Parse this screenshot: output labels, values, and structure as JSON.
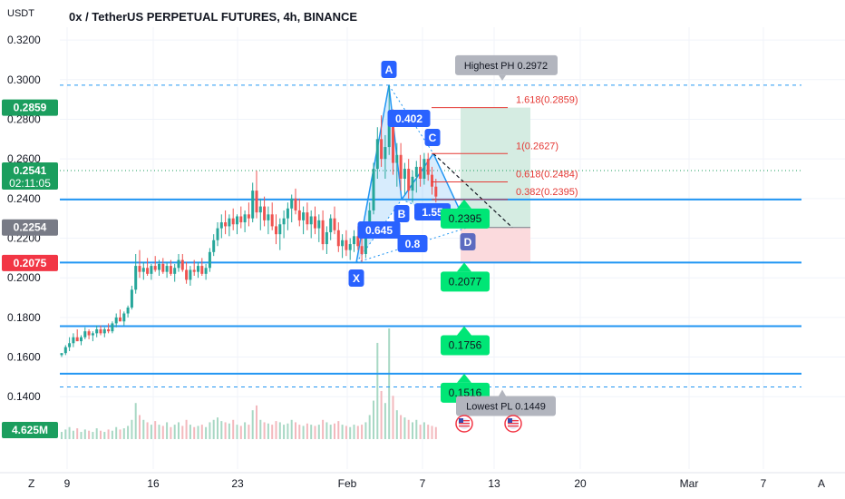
{
  "header": {
    "title": "0x / TetherUS PERPETUAL FUTURES, 4h, BINANCE",
    "unit": "USDT"
  },
  "bottom_bar": {
    "left_button": "Z",
    "right_button": "A"
  },
  "chart_data": {
    "type": "candlestick",
    "y_ticks": [
      "0.3200",
      "0.3000",
      "0.2800",
      "0.2600",
      "0.2400",
      "0.2200",
      "0.2000",
      "0.1800",
      "0.1600",
      "0.1400"
    ],
    "ylim": [
      0.13,
      0.327
    ],
    "x_ticks": [
      "9",
      "16",
      "23",
      "Feb",
      "7",
      "13",
      "20",
      "Mar",
      "7"
    ],
    "price_badges": [
      {
        "text": "0.2859",
        "value": 0.2859,
        "color": "#1b9e5e"
      },
      {
        "text": "0.2541",
        "value": 0.2541,
        "color": "#1b9e5e",
        "sub": "02:11:05"
      },
      {
        "text": "0.2254",
        "value": 0.2254,
        "color": "#787b86"
      },
      {
        "text": "0.2075",
        "value": 0.2075,
        "color": "#f23645"
      }
    ],
    "volume_badge": "4.625M",
    "horizontal_levels": [
      {
        "value": 0.2395,
        "style": "solid"
      },
      {
        "value": 0.2077,
        "style": "solid"
      },
      {
        "value": 0.1756,
        "style": "solid"
      },
      {
        "value": 0.1516,
        "style": "solid"
      },
      {
        "value": 0.2972,
        "style": "dashed"
      },
      {
        "value": 0.1449,
        "style": "dashed"
      }
    ],
    "current_price": 0.2541,
    "pattern": {
      "name": "harmonic",
      "points": [
        {
          "label": "X",
          "value": 0.2077
        },
        {
          "label": "A",
          "value": 0.2972
        },
        {
          "label": "B",
          "value": 0.2395
        },
        {
          "label": "C",
          "value": 0.2627
        },
        {
          "label": "D",
          "value": 0.2254
        }
      ],
      "ratios": [
        "0.402",
        "0.645",
        "0.8",
        "1.55"
      ]
    },
    "fib_levels": [
      {
        "text": "1.618(0.2859)",
        "value": 0.2859
      },
      {
        "text": "1(0.2627)",
        "value": 0.2627
      },
      {
        "text": "0.618(0.2484)",
        "value": 0.2484
      },
      {
        "text": "0.382(0.2395)",
        "value": 0.2395
      }
    ],
    "targets": [
      {
        "text": "0.2395",
        "value": 0.2395
      },
      {
        "text": "0.2077",
        "value": 0.2077
      },
      {
        "text": "0.1756",
        "value": 0.1756
      },
      {
        "text": "0.1516",
        "value": 0.1516
      }
    ],
    "annotations": [
      {
        "text": "Highest PH 0.2972",
        "value": 0.2972
      },
      {
        "text": "Lowest PL 0.1449",
        "value": 0.1449
      }
    ],
    "position": {
      "entry": 0.2254,
      "target": 0.2859,
      "stop": 0.2075
    },
    "candles": [
      [
        0.161,
        0.162,
        0.16,
        0.162
      ],
      [
        0.162,
        0.166,
        0.161,
        0.165
      ],
      [
        0.165,
        0.17,
        0.163,
        0.167
      ],
      [
        0.167,
        0.172,
        0.165,
        0.17
      ],
      [
        0.17,
        0.174,
        0.168,
        0.168
      ],
      [
        0.168,
        0.171,
        0.166,
        0.17
      ],
      [
        0.17,
        0.175,
        0.169,
        0.173
      ],
      [
        0.173,
        0.174,
        0.169,
        0.171
      ],
      [
        0.171,
        0.173,
        0.168,
        0.172
      ],
      [
        0.172,
        0.176,
        0.17,
        0.174
      ],
      [
        0.174,
        0.176,
        0.171,
        0.172
      ],
      [
        0.172,
        0.175,
        0.17,
        0.174
      ],
      [
        0.174,
        0.177,
        0.172,
        0.173
      ],
      [
        0.173,
        0.178,
        0.172,
        0.177
      ],
      [
        0.177,
        0.182,
        0.175,
        0.18
      ],
      [
        0.18,
        0.184,
        0.178,
        0.178
      ],
      [
        0.178,
        0.183,
        0.176,
        0.182
      ],
      [
        0.182,
        0.186,
        0.18,
        0.185
      ],
      [
        0.185,
        0.196,
        0.184,
        0.194
      ],
      [
        0.194,
        0.212,
        0.192,
        0.206
      ],
      [
        0.206,
        0.214,
        0.2,
        0.203
      ],
      [
        0.203,
        0.208,
        0.199,
        0.205
      ],
      [
        0.205,
        0.21,
        0.201,
        0.202
      ],
      [
        0.202,
        0.207,
        0.199,
        0.206
      ],
      [
        0.206,
        0.211,
        0.203,
        0.204
      ],
      [
        0.204,
        0.209,
        0.201,
        0.207
      ],
      [
        0.207,
        0.21,
        0.202,
        0.203
      ],
      [
        0.203,
        0.208,
        0.2,
        0.206
      ],
      [
        0.206,
        0.209,
        0.201,
        0.202
      ],
      [
        0.202,
        0.207,
        0.198,
        0.205
      ],
      [
        0.205,
        0.212,
        0.203,
        0.209
      ],
      [
        0.209,
        0.212,
        0.203,
        0.204
      ],
      [
        0.204,
        0.208,
        0.197,
        0.199
      ],
      [
        0.199,
        0.206,
        0.196,
        0.204
      ],
      [
        0.204,
        0.209,
        0.201,
        0.203
      ],
      [
        0.203,
        0.208,
        0.2,
        0.206
      ],
      [
        0.206,
        0.21,
        0.201,
        0.202
      ],
      [
        0.202,
        0.207,
        0.199,
        0.205
      ],
      [
        0.205,
        0.215,
        0.203,
        0.213
      ],
      [
        0.213,
        0.222,
        0.211,
        0.219
      ],
      [
        0.219,
        0.228,
        0.216,
        0.225
      ],
      [
        0.225,
        0.232,
        0.22,
        0.228
      ],
      [
        0.228,
        0.234,
        0.222,
        0.226
      ],
      [
        0.226,
        0.232,
        0.221,
        0.23
      ],
      [
        0.23,
        0.235,
        0.224,
        0.227
      ],
      [
        0.227,
        0.232,
        0.222,
        0.231
      ],
      [
        0.231,
        0.236,
        0.225,
        0.228
      ],
      [
        0.228,
        0.234,
        0.223,
        0.232
      ],
      [
        0.232,
        0.238,
        0.226,
        0.23
      ],
      [
        0.23,
        0.248,
        0.228,
        0.244
      ],
      [
        0.244,
        0.254,
        0.23,
        0.233
      ],
      [
        0.233,
        0.24,
        0.224,
        0.236
      ],
      [
        0.236,
        0.241,
        0.226,
        0.229
      ],
      [
        0.229,
        0.236,
        0.222,
        0.232
      ],
      [
        0.232,
        0.238,
        0.224,
        0.226
      ],
      [
        0.226,
        0.232,
        0.217,
        0.222
      ],
      [
        0.222,
        0.23,
        0.214,
        0.227
      ],
      [
        0.227,
        0.234,
        0.22,
        0.23
      ],
      [
        0.23,
        0.238,
        0.224,
        0.235
      ],
      [
        0.235,
        0.242,
        0.228,
        0.24
      ],
      [
        0.24,
        0.245,
        0.232,
        0.234
      ],
      [
        0.234,
        0.24,
        0.226,
        0.229
      ],
      [
        0.229,
        0.236,
        0.222,
        0.233
      ],
      [
        0.233,
        0.238,
        0.224,
        0.227
      ],
      [
        0.227,
        0.234,
        0.22,
        0.231
      ],
      [
        0.231,
        0.236,
        0.222,
        0.225
      ],
      [
        0.225,
        0.232,
        0.218,
        0.229
      ],
      [
        0.229,
        0.234,
        0.214,
        0.217
      ],
      [
        0.217,
        0.226,
        0.212,
        0.223
      ],
      [
        0.223,
        0.232,
        0.219,
        0.23
      ],
      [
        0.23,
        0.236,
        0.222,
        0.224
      ],
      [
        0.224,
        0.228,
        0.213,
        0.216
      ],
      [
        0.216,
        0.222,
        0.21,
        0.219
      ],
      [
        0.219,
        0.224,
        0.211,
        0.214
      ],
      [
        0.214,
        0.22,
        0.209,
        0.217
      ],
      [
        0.217,
        0.224,
        0.213,
        0.221
      ],
      [
        0.221,
        0.226,
        0.214,
        0.216
      ],
      [
        0.216,
        0.221,
        0.208,
        0.212
      ],
      [
        0.212,
        0.225,
        0.21,
        0.222
      ],
      [
        0.222,
        0.238,
        0.22,
        0.234
      ],
      [
        0.234,
        0.258,
        0.232,
        0.255
      ],
      [
        0.255,
        0.276,
        0.25,
        0.27
      ],
      [
        0.27,
        0.282,
        0.256,
        0.26
      ],
      [
        0.26,
        0.272,
        0.25,
        0.266
      ],
      [
        0.266,
        0.297,
        0.262,
        0.28
      ],
      [
        0.28,
        0.285,
        0.252,
        0.258
      ],
      [
        0.258,
        0.268,
        0.246,
        0.262
      ],
      [
        0.262,
        0.268,
        0.244,
        0.25
      ],
      [
        0.25,
        0.258,
        0.242,
        0.255
      ],
      [
        0.255,
        0.26,
        0.24,
        0.244
      ],
      [
        0.244,
        0.254,
        0.238,
        0.251
      ],
      [
        0.251,
        0.259,
        0.243,
        0.256
      ],
      [
        0.256,
        0.262,
        0.246,
        0.25
      ],
      [
        0.25,
        0.263,
        0.247,
        0.26
      ],
      [
        0.26,
        0.263,
        0.249,
        0.252
      ],
      [
        0.252,
        0.256,
        0.242,
        0.246
      ],
      [
        0.246,
        0.25,
        0.238,
        0.241
      ]
    ],
    "volumes": [
      0.3,
      0.4,
      0.5,
      0.35,
      0.45,
      0.3,
      0.4,
      0.35,
      0.3,
      0.45,
      0.35,
      0.3,
      0.4,
      0.35,
      0.5,
      0.4,
      0.45,
      0.55,
      0.8,
      1.5,
      1.0,
      0.8,
      0.7,
      0.6,
      0.75,
      0.6,
      0.55,
      0.7,
      0.5,
      0.6,
      0.7,
      0.55,
      0.8,
      0.6,
      0.5,
      0.55,
      0.6,
      0.5,
      0.7,
      0.8,
      0.9,
      0.75,
      0.7,
      0.65,
      0.8,
      0.6,
      0.55,
      0.7,
      0.6,
      1.2,
      1.4,
      0.8,
      0.7,
      0.65,
      0.6,
      0.75,
      0.7,
      0.6,
      0.65,
      0.8,
      0.7,
      0.6,
      0.55,
      0.65,
      0.6,
      0.55,
      0.6,
      0.8,
      0.7,
      0.6,
      0.65,
      0.75,
      0.6,
      0.55,
      0.5,
      0.6,
      0.55,
      0.6,
      0.7,
      1.0,
      1.6,
      4.0,
      2.0,
      1.5,
      4.6,
      1.8,
      1.2,
      1.0,
      0.9,
      0.8,
      0.7,
      0.8,
      0.6,
      0.7,
      0.6,
      0.55,
      0.5
    ]
  }
}
